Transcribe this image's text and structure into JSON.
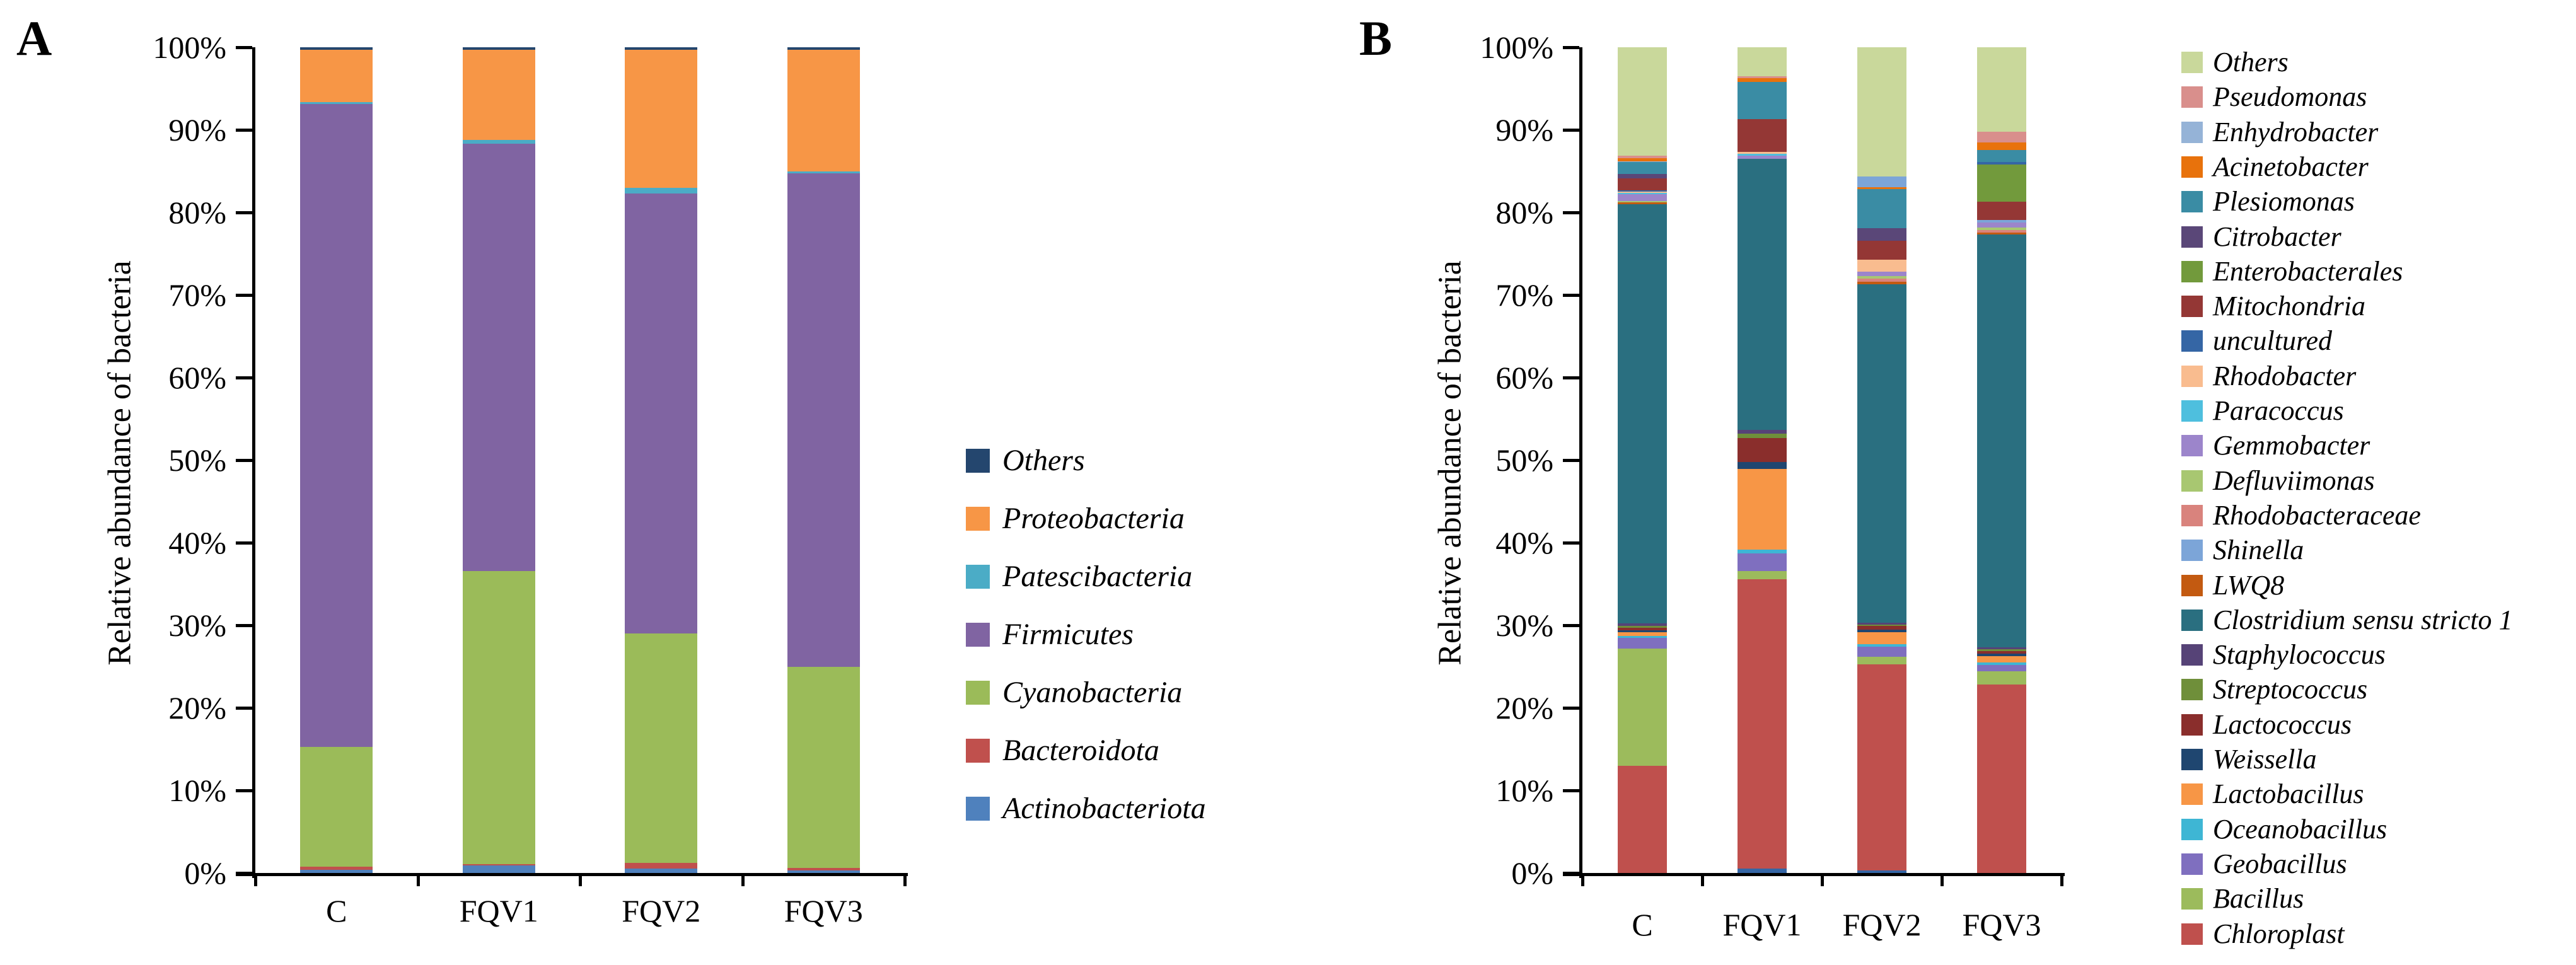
{
  "figure": {
    "background": "#ffffff"
  },
  "chart_data": [
    {
      "panel_label": "A",
      "type": "bar",
      "stacked": true,
      "title": "",
      "xlabel": "",
      "ylabel": "Relative abundance of bacteria",
      "ylim": [
        0,
        100
      ],
      "grid": false,
      "legend_position": "right",
      "ytick_labels": [
        "100%",
        "90%",
        "80%",
        "70%",
        "60%",
        "50%",
        "40%",
        "30%",
        "20%",
        "10%",
        "0%"
      ],
      "categories": [
        "C",
        "FQV1",
        "FQV2",
        "FQV3"
      ],
      "legend_order": [
        "Others",
        "Proteobacteria",
        "Patescibacteria",
        "Firmicutes",
        "Cyanobacteria",
        "Bacteroidota",
        "Actinobacteriota"
      ],
      "colors": {
        "Others": "#24466E",
        "Proteobacteria": "#F79646",
        "Patescibacteria": "#4BACC6",
        "Firmicutes": "#8064A2",
        "Cyanobacteria": "#9BBB59",
        "Bacteroidota": "#C0504D",
        "Actinobacteriota": "#4F81BD"
      },
      "bars": [
        {
          "label": "C",
          "segments": [
            [
              "Actinobacteriota",
              0.4
            ],
            [
              "Bacteroidota",
              0.4
            ],
            [
              "Cyanobacteria",
              14.5
            ],
            [
              "Firmicutes",
              77.8
            ],
            [
              "Patescibacteria",
              0.3
            ],
            [
              "Proteobacteria",
              6.3
            ],
            [
              "Others",
              0.3
            ]
          ]
        },
        {
          "label": "FQV1",
          "segments": [
            [
              "Actinobacteriota",
              0.9
            ],
            [
              "Bacteroidota",
              0.2
            ],
            [
              "Cyanobacteria",
              35.5
            ],
            [
              "Firmicutes",
              51.7
            ],
            [
              "Patescibacteria",
              0.5
            ],
            [
              "Proteobacteria",
              10.9
            ],
            [
              "Others",
              0.3
            ]
          ]
        },
        {
          "label": "FQV2",
          "segments": [
            [
              "Actinobacteriota",
              0.5
            ],
            [
              "Bacteroidota",
              0.7
            ],
            [
              "Cyanobacteria",
              27.8
            ],
            [
              "Firmicutes",
              53.3
            ],
            [
              "Patescibacteria",
              0.7
            ],
            [
              "Proteobacteria",
              16.7
            ],
            [
              "Others",
              0.3
            ]
          ]
        },
        {
          "label": "FQV3",
          "segments": [
            [
              "Actinobacteriota",
              0.3
            ],
            [
              "Bacteroidota",
              0.3
            ],
            [
              "Cyanobacteria",
              24.4
            ],
            [
              "Firmicutes",
              59.7
            ],
            [
              "Patescibacteria",
              0.3
            ],
            [
              "Proteobacteria",
              14.7
            ],
            [
              "Others",
              0.3
            ]
          ]
        }
      ]
    },
    {
      "panel_label": "B",
      "type": "bar",
      "stacked": true,
      "title": "",
      "xlabel": "",
      "ylabel": "Relative abundance  of bacteria",
      "ylim": [
        0,
        100
      ],
      "grid": false,
      "legend_position": "right",
      "ytick_labels": [
        "100%",
        "90%",
        "80%",
        "70%",
        "60%",
        "50%",
        "40%",
        "30%",
        "20%",
        "10%",
        "0%"
      ],
      "categories": [
        "C",
        "FQV1",
        "FQV2",
        "FQV3"
      ],
      "legend_order": [
        "Others",
        "Pseudomonas",
        "Enhydrobacter",
        "Acinetobacter",
        "Plesiomonas",
        "Citrobacter",
        "Enterobacterales",
        "Mitochondria",
        "uncultured",
        "Rhodobacter",
        "Paracoccus",
        "Gemmobacter",
        "Defluviimonas",
        "Rhodobacteraceae",
        "Shinella",
        "LWQ8",
        "Clostridium sensu stricto 1",
        "Staphylococcus",
        "Streptococcus",
        "Lactococcus",
        "Weissella",
        "Lactobacillus",
        "Oceanobacillus",
        "Geobacillus",
        "Bacillus",
        "Chloroplast"
      ],
      "colors": {
        "Others": "#C9D89B",
        "Pseudomonas": "#D98F8C",
        "Enhydrobacter": "#95B3D7",
        "Acinetobacter": "#E8720C",
        "Plesiomonas": "#3A8CA4",
        "Citrobacter": "#5A4778",
        "Enterobacterales": "#729A3C",
        "Mitochondria": "#943735",
        "uncultured": "#3566A5",
        "Rhodobacter": "#F9BC8F",
        "Paracoccus": "#4EBFDE",
        "Gemmobacter": "#9C85CB",
        "Defluviimonas": "#A8C771",
        "Rhodobacteraceae": "#D9837D",
        "Shinella": "#7CA5D8",
        "LWQ8": "#C35A11",
        "Clostridium sensu stricto 1": "#2A6F80",
        "Staphylococcus": "#564377",
        "Streptococcus": "#6F8F3A",
        "Lactococcus": "#8A2E2C",
        "Weissella": "#1F4670",
        "Lactobacillus": "#F79646",
        "Oceanobacillus": "#3EB6D4",
        "Geobacillus": "#7F6FBF",
        "Bacillus": "#9CBB5C",
        "Chloroplast": "#BF504D"
      },
      "bars": [
        {
          "label": "C",
          "segments": [
            [
              "Chloroplast",
              13.0
            ],
            [
              "Bacillus",
              14.2
            ],
            [
              "Geobacillus",
              1.3
            ],
            [
              "Oceanobacillus",
              0.2
            ],
            [
              "Lactobacillus",
              0.5
            ],
            [
              "Weissella",
              0.2
            ],
            [
              "Lactococcus",
              0.3
            ],
            [
              "Streptococcus",
              0.2
            ],
            [
              "Staphylococcus",
              0.3
            ],
            [
              "Clostridium sensu stricto 1",
              50.8
            ],
            [
              "LWQ8",
              0.2
            ],
            [
              "Defluviimonas",
              0.15
            ],
            [
              "Gemmobacter",
              0.85
            ],
            [
              "Paracoccus",
              0.15
            ],
            [
              "Rhodobacter",
              0.15
            ],
            [
              "uncultured",
              0.15
            ],
            [
              "Mitochondria",
              1.5
            ],
            [
              "Citrobacter",
              0.55
            ],
            [
              "Plesiomonas",
              1.4
            ],
            [
              "Enhydrobacter",
              0.1
            ],
            [
              "Acinetobacter",
              0.4
            ],
            [
              "Pseudomonas",
              0.25
            ],
            [
              "Others",
              13.15
            ]
          ]
        },
        {
          "label": "FQV1",
          "segments": [
            [
              "uncultured",
              0.5
            ],
            [
              "Chloroplast",
              35.1
            ],
            [
              "Bacillus",
              1.0
            ],
            [
              "Geobacillus",
              2.1
            ],
            [
              "Oceanobacillus",
              0.5
            ],
            [
              "Lactobacillus",
              9.7
            ],
            [
              "Weissella",
              0.9
            ],
            [
              "Lactococcus",
              2.9
            ],
            [
              "Streptococcus",
              0.5
            ],
            [
              "Staphylococcus",
              0.5
            ],
            [
              "Clostridium sensu stricto 1",
              32.8
            ],
            [
              "Gemmobacter",
              0.4
            ],
            [
              "Paracoccus",
              0.2
            ],
            [
              "Rhodobacter",
              0.2
            ],
            [
              "Mitochondria",
              4.0
            ],
            [
              "Plesiomonas",
              4.5
            ],
            [
              "Acinetobacter",
              0.5
            ],
            [
              "Pseudomonas",
              0.2
            ],
            [
              "Others",
              3.5
            ]
          ]
        },
        {
          "label": "FQV2",
          "segments": [
            [
              "uncultured",
              0.3
            ],
            [
              "Chloroplast",
              25.0
            ],
            [
              "Bacillus",
              0.9
            ],
            [
              "Geobacillus",
              1.2
            ],
            [
              "Oceanobacillus",
              0.3
            ],
            [
              "Lactobacillus",
              1.5
            ],
            [
              "Weissella",
              0.3
            ],
            [
              "Lactococcus",
              0.4
            ],
            [
              "Streptococcus",
              0.2
            ],
            [
              "Staphylococcus",
              0.2
            ],
            [
              "Clostridium sensu stricto 1",
              41.0
            ],
            [
              "LWQ8",
              0.3
            ],
            [
              "Rhodobacteraceae",
              0.4
            ],
            [
              "Defluviimonas",
              0.3
            ],
            [
              "Gemmobacter",
              0.5
            ],
            [
              "Rhodobacter",
              1.5
            ],
            [
              "Mitochondria",
              2.3
            ],
            [
              "Citrobacter",
              1.5
            ],
            [
              "Plesiomonas",
              4.7
            ],
            [
              "Acinetobacter",
              0.25
            ],
            [
              "Shinella",
              1.35
            ],
            [
              "Others",
              15.6
            ]
          ]
        },
        {
          "label": "FQV3",
          "segments": [
            [
              "Chloroplast",
              22.8
            ],
            [
              "Bacillus",
              1.6
            ],
            [
              "Geobacillus",
              0.8
            ],
            [
              "Oceanobacillus",
              0.3
            ],
            [
              "Lactobacillus",
              0.8
            ],
            [
              "Weissella",
              0.3
            ],
            [
              "Lactococcus",
              0.3
            ],
            [
              "Streptococcus",
              0.2
            ],
            [
              "Staphylococcus",
              0.2
            ],
            [
              "Clostridium sensu stricto 1",
              50.0
            ],
            [
              "LWQ8",
              0.3
            ],
            [
              "Rhodobacteraceae",
              0.3
            ],
            [
              "Defluviimonas",
              0.3
            ],
            [
              "Gemmobacter",
              0.6
            ],
            [
              "Shinella",
              0.3
            ],
            [
              "Mitochondria",
              2.2
            ],
            [
              "Enterobacterales",
              4.5
            ],
            [
              "uncultured",
              0.3
            ],
            [
              "Plesiomonas",
              1.5
            ],
            [
              "Acinetobacter",
              0.9
            ],
            [
              "Pseudomonas",
              1.3
            ],
            [
              "Others",
              10.2
            ]
          ]
        }
      ]
    }
  ]
}
